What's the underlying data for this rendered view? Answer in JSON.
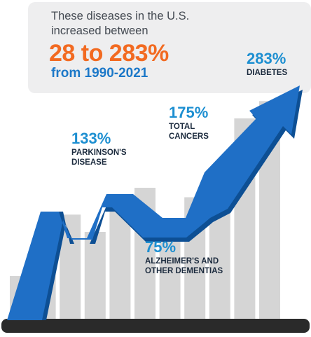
{
  "intro": {
    "line1": "These diseases in the U.S.",
    "line2": "increased between",
    "headline": "28 to 283%",
    "period": "from 1990-2021"
  },
  "colors": {
    "accent_orange": "#f26a21",
    "accent_blue": "#1c78c8",
    "bar_gray": "#d5d5d5",
    "panel_gray": "#eeeeef",
    "base_dark": "#2a2a2a"
  },
  "chart_data": {
    "type": "bar",
    "bar_values": [
      28,
      50,
      67,
      56,
      71,
      84,
      64,
      78,
      79,
      128,
      139
    ],
    "ylim": [
      0,
      160
    ],
    "annotations": [
      {
        "id": "parkinsons",
        "value": "133%",
        "line1": "PARKINSON'S",
        "line2": "DISEASE"
      },
      {
        "id": "cancers",
        "value": "175%",
        "line1": "TOTAL",
        "line2": "CANCERS"
      },
      {
        "id": "alzheimers",
        "value": "75%",
        "line1": "ALZHEIMER'S AND",
        "line2": "OTHER DEMENTIAS"
      },
      {
        "id": "diabetes",
        "value": "283%",
        "line1": "DIABETES",
        "line2": ""
      }
    ]
  }
}
